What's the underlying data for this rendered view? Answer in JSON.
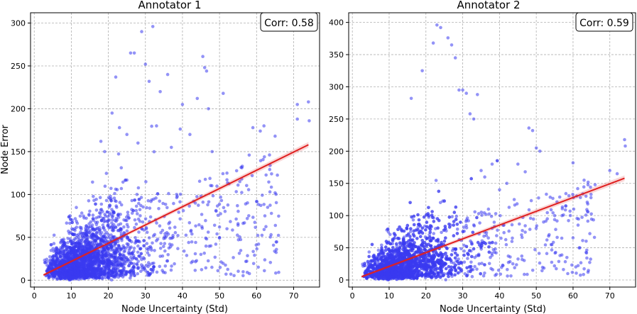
{
  "chart_data": [
    {
      "type": "scatter",
      "title": "Annotator 1",
      "xlabel": "Node Uncertainty (Std)",
      "ylabel": "Node Error",
      "xlim": [
        -1,
        77
      ],
      "ylim": [
        -8,
        312
      ],
      "xticks": [
        0,
        10,
        20,
        30,
        40,
        50,
        60,
        70
      ],
      "yticks": [
        0,
        50,
        100,
        150,
        200,
        250,
        300
      ],
      "grid": true,
      "annotation": "Corr: 0.58",
      "fit_line": {
        "x": [
          2.5,
          74
        ],
        "y": [
          6,
          158
        ]
      },
      "point_color": "#3b3bf0",
      "line_color": "#e02020",
      "sample_points": {
        "x": [
          29,
          32,
          26,
          27,
          30,
          45.5,
          46,
          46.5,
          51,
          44,
          47,
          40,
          22,
          31,
          62,
          71,
          74,
          71,
          74.2,
          65,
          61,
          59,
          52,
          55,
          56,
          58,
          48,
          65,
          45,
          60,
          63,
          64,
          52,
          42,
          34,
          36,
          49,
          50,
          33,
          37,
          21,
          23,
          25,
          28,
          18,
          19
        ],
        "y": [
          290,
          296,
          265,
          265,
          252,
          261,
          248,
          244,
          218,
          212,
          200,
          205,
          237,
          232,
          180,
          205,
          208,
          188,
          186,
          168,
          174,
          178,
          125,
          111,
          118,
          146,
          150,
          102,
          98,
          92,
          85,
          78,
          60,
          170,
          220,
          240,
          42,
          62,
          180,
          155,
          195,
          178,
          170,
          160,
          162,
          150
        ]
      }
    },
    {
      "type": "scatter",
      "title": "Annotator 2",
      "xlabel": "Node Uncertainty (Std)",
      "ylabel": "",
      "xlim": [
        -1,
        77
      ],
      "ylim": [
        -11,
        415
      ],
      "xticks": [
        0,
        10,
        20,
        30,
        40,
        50,
        60,
        70
      ],
      "yticks": [
        0,
        50,
        100,
        150,
        200,
        250,
        300,
        350,
        400
      ],
      "grid": true,
      "annotation": "Corr: 0.59",
      "fit_line": {
        "x": [
          2.5,
          74
        ],
        "y": [
          5,
          158
        ]
      },
      "point_color": "#3b3bf0",
      "line_color": "#e02020",
      "sample_points": {
        "x": [
          23,
          24,
          26,
          27,
          28,
          29,
          22,
          19,
          30,
          31,
          32,
          34,
          33,
          16,
          48,
          49,
          50,
          51,
          45,
          47,
          60,
          63,
          66,
          70,
          74,
          74.2,
          72,
          58,
          55,
          53,
          62,
          64,
          57,
          52,
          40,
          44,
          42,
          38,
          36,
          35,
          37,
          41,
          46
        ],
        "y": [
          396,
          392,
          376,
          365,
          345,
          295,
          368,
          325,
          295,
          290,
          258,
          288,
          250,
          282,
          236,
          232,
          205,
          200,
          180,
          168,
          182,
          155,
          148,
          170,
          218,
          208,
          165,
          115,
          100,
          95,
          128,
          118,
          100,
          90,
          140,
          125,
          150,
          180,
          160,
          170,
          110,
          85,
          70
        ]
      }
    }
  ]
}
